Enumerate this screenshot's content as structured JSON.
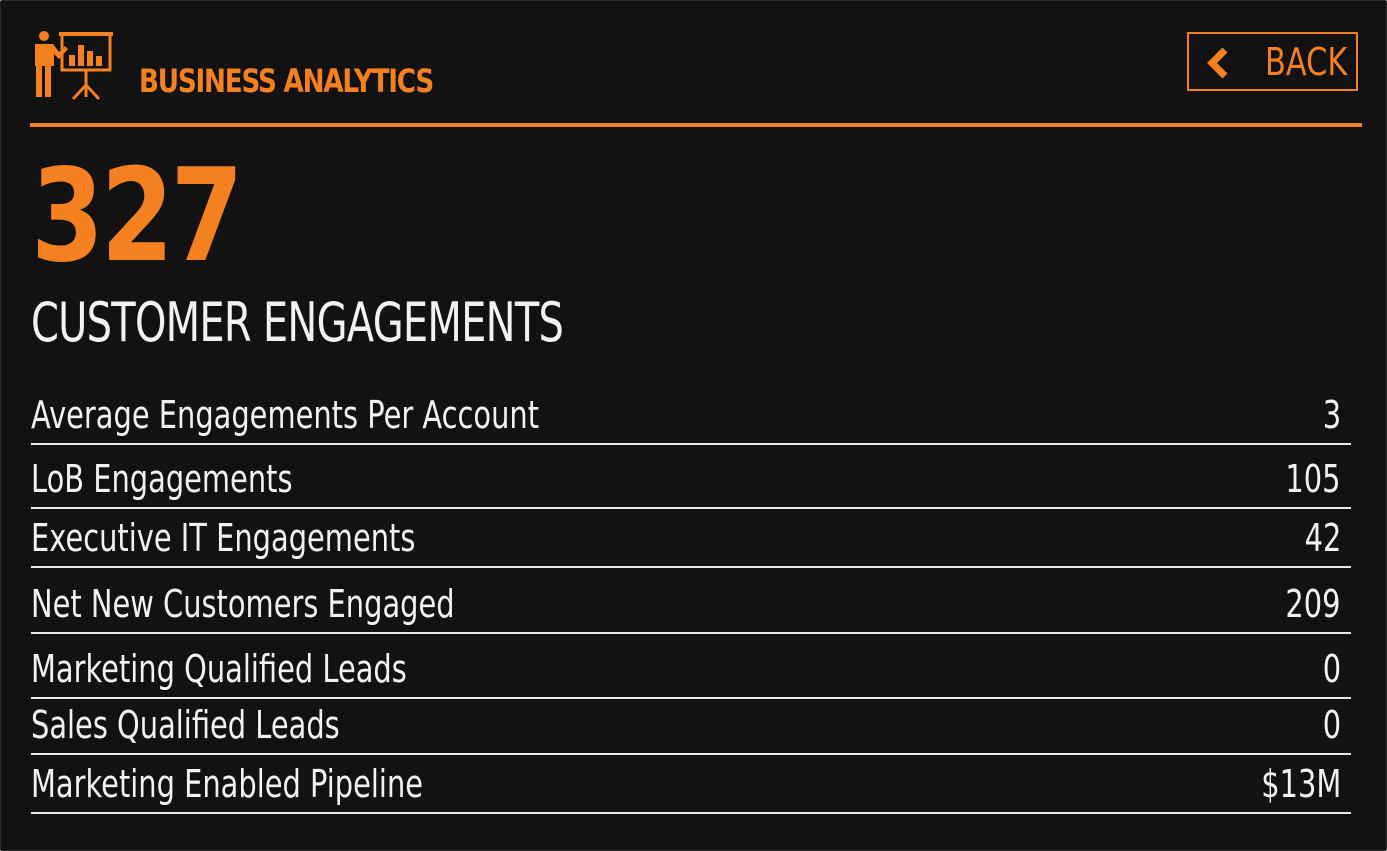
{
  "header": {
    "title": "BUSINESS ANALYTICS",
    "icon": "presenter-chart-icon",
    "back_label": "BACK",
    "back_icon": "chevron-left-icon"
  },
  "summary": {
    "value": "327",
    "label": "CUSTOMER ENGAGEMENTS"
  },
  "metrics": [
    {
      "label": "Average Engagements Per Account",
      "value": "3"
    },
    {
      "label": "LoB Engagements",
      "value": "105"
    },
    {
      "label": "Executive IT Engagements",
      "value": "42"
    },
    {
      "label": "Net New Customers Engaged",
      "value": "209"
    },
    {
      "label": "Marketing Qualified Leads",
      "value": "0"
    },
    {
      "label": "Sales Qualified Leads",
      "value": "0"
    },
    {
      "label": "Marketing Enabled Pipeline",
      "value": "$13M"
    }
  ],
  "colors": {
    "accent": "#f5801f",
    "background": "#121212",
    "text": "#f2f2f2",
    "divider": "#e9e9e9"
  }
}
